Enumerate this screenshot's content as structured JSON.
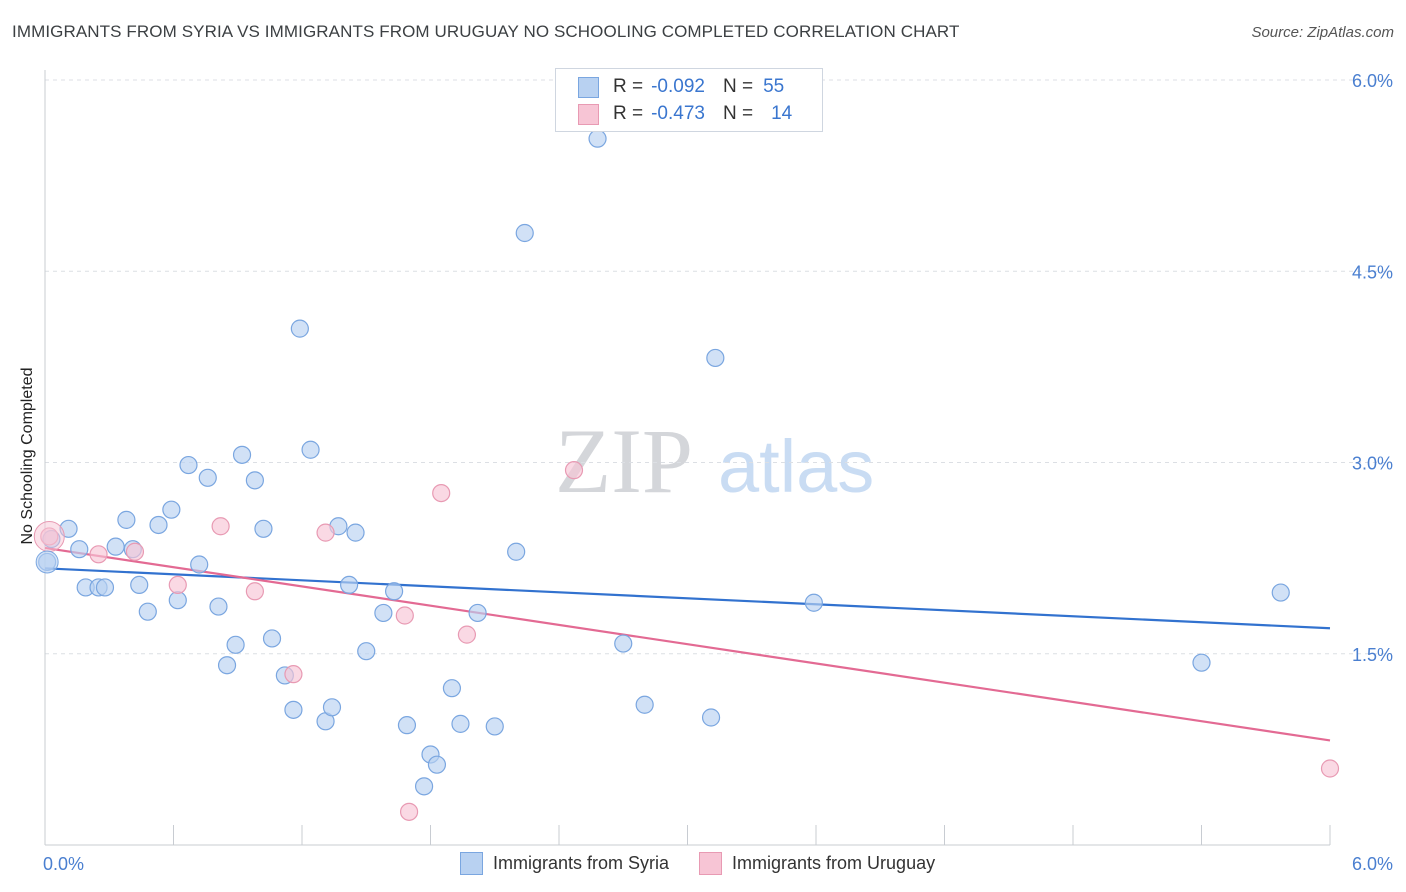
{
  "header": {
    "title": "IMMIGRANTS FROM SYRIA VS IMMIGRANTS FROM URUGUAY NO SCHOOLING COMPLETED CORRELATION CHART",
    "source": "Source: ZipAtlas.com"
  },
  "legend_top": {
    "rows": [
      {
        "r_label": "R =",
        "r_value": "-0.092",
        "n_label": "N =",
        "n_value": "55"
      },
      {
        "r_label": "R =",
        "r_value": "-0.473",
        "n_label": "N =",
        "n_value": "14"
      }
    ]
  },
  "legend_bottom": {
    "items": [
      {
        "label": "Immigrants from Syria"
      },
      {
        "label": "Immigrants from Uruguay"
      }
    ]
  },
  "watermark": {
    "part1": "ZIP",
    "part2": "atlas"
  },
  "colors": {
    "syria_fill": "#b8d1f1",
    "syria_stroke": "#7aa6e0",
    "syria_line": "#3272cf",
    "uruguay_fill": "#f7c5d5",
    "uruguay_stroke": "#e89ab3",
    "uruguay_line": "#e36a93",
    "grid": "#dcdfe4",
    "tick_text": "#4a7fd0"
  },
  "chart_data": {
    "type": "scatter",
    "title": "IMMIGRANTS FROM SYRIA VS IMMIGRANTS FROM URUGUAY NO SCHOOLING COMPLETED CORRELATION CHART",
    "xlabel": "",
    "ylabel": "No Schooling Completed",
    "xlim": [
      0,
      6.0
    ],
    "ylim": [
      0,
      6.2
    ],
    "x_tick_labels": [
      "0.0%",
      "6.0%"
    ],
    "y_ticks": [
      1.5,
      3.0,
      4.5,
      6.0
    ],
    "y_tick_labels": [
      "1.5%",
      "3.0%",
      "4.5%",
      "6.0%"
    ],
    "grid": true,
    "legend": "top-center",
    "series": [
      {
        "name": "Immigrants from Syria",
        "R": -0.092,
        "N": 55,
        "trend": {
          "x": [
            0.0,
            6.0
          ],
          "y": [
            2.17,
            1.7
          ]
        },
        "points": [
          [
            0.03,
            2.4
          ],
          [
            0.01,
            2.22
          ],
          [
            0.11,
            2.48
          ],
          [
            0.16,
            2.32
          ],
          [
            0.19,
            2.02
          ],
          [
            0.25,
            2.02
          ],
          [
            0.28,
            2.02
          ],
          [
            0.33,
            2.34
          ],
          [
            0.38,
            2.55
          ],
          [
            0.41,
            2.32
          ],
          [
            0.44,
            2.04
          ],
          [
            0.48,
            1.83
          ],
          [
            0.53,
            2.51
          ],
          [
            0.59,
            2.63
          ],
          [
            0.62,
            1.92
          ],
          [
            0.67,
            2.98
          ],
          [
            0.72,
            2.2
          ],
          [
            0.76,
            2.88
          ],
          [
            0.81,
            1.87
          ],
          [
            0.85,
            1.41
          ],
          [
            0.89,
            1.57
          ],
          [
            0.92,
            3.06
          ],
          [
            0.98,
            2.86
          ],
          [
            1.02,
            2.48
          ],
          [
            1.06,
            1.62
          ],
          [
            1.12,
            1.33
          ],
          [
            1.16,
            1.06
          ],
          [
            1.19,
            4.05
          ],
          [
            1.24,
            3.1
          ],
          [
            1.31,
            0.97
          ],
          [
            1.34,
            1.08
          ],
          [
            1.37,
            2.5
          ],
          [
            1.42,
            2.04
          ],
          [
            1.45,
            2.45
          ],
          [
            1.5,
            1.52
          ],
          [
            1.58,
            1.82
          ],
          [
            1.63,
            1.99
          ],
          [
            1.69,
            0.94
          ],
          [
            1.77,
            0.46
          ],
          [
            1.8,
            0.71
          ],
          [
            1.83,
            0.63
          ],
          [
            1.9,
            1.23
          ],
          [
            1.94,
            0.95
          ],
          [
            2.02,
            1.82
          ],
          [
            2.1,
            0.93
          ],
          [
            2.2,
            2.3
          ],
          [
            2.24,
            4.8
          ],
          [
            2.58,
            5.54
          ],
          [
            2.7,
            1.58
          ],
          [
            2.8,
            1.1
          ],
          [
            3.11,
            1.0
          ],
          [
            3.13,
            3.82
          ],
          [
            3.59,
            1.9
          ],
          [
            5.4,
            1.43
          ],
          [
            5.77,
            1.98
          ]
        ]
      },
      {
        "name": "Immigrants from Uruguay",
        "R": -0.473,
        "N": 14,
        "trend": {
          "x": [
            0.0,
            6.0
          ],
          "y": [
            2.33,
            0.82
          ]
        },
        "points": [
          [
            0.02,
            2.42
          ],
          [
            0.25,
            2.28
          ],
          [
            0.42,
            2.3
          ],
          [
            0.62,
            2.04
          ],
          [
            0.82,
            2.5
          ],
          [
            0.98,
            1.99
          ],
          [
            1.16,
            1.34
          ],
          [
            1.31,
            2.45
          ],
          [
            1.68,
            1.8
          ],
          [
            1.7,
            0.26
          ],
          [
            1.85,
            2.76
          ],
          [
            1.97,
            1.65
          ],
          [
            2.47,
            2.94
          ],
          [
            6.0,
            0.6
          ]
        ]
      }
    ]
  }
}
